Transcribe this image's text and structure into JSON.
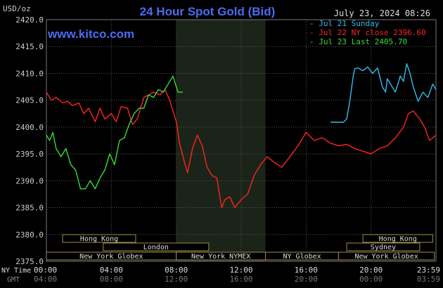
{
  "chart_data": {
    "type": "line",
    "title": "24 Hour Spot Gold (Bid)",
    "ylabel": "USD/oz",
    "timestamp": "July 23, 2024 08:26",
    "watermark": "www.kitco.com",
    "ylim": [
      2375.0,
      2420.0
    ],
    "y_ticks": [
      "2420.0",
      "2415.0",
      "2410.0",
      "2405.0",
      "2400.0",
      "2395.0",
      "2390.0",
      "2385.0",
      "2380.0",
      "2375.0"
    ],
    "xlim": [
      0,
      24
    ],
    "x_ticks_ny": [
      "00:00",
      "04:00",
      "08:00",
      "12:00",
      "16:00",
      "20:00",
      "23:59"
    ],
    "x_ticks_gmt": [
      "04:00",
      "08:00",
      "12:00",
      "16:00",
      "20:00",
      "00:00",
      "03:59"
    ],
    "x_row_labels": {
      "ny": "NY Time",
      "gmt": "GMT"
    },
    "grid": true,
    "legend_position": "top-right",
    "highlight_band": [
      8.0,
      13.5
    ],
    "series": [
      {
        "name": "Jul 21 Sunday",
        "color": "#33bbee",
        "x": [
          17.5,
          18.3,
          18.5,
          18.7,
          18.9,
          19.0,
          19.2,
          19.5,
          19.8,
          20.1,
          20.4,
          20.7,
          20.9,
          21.0,
          21.2,
          21.5,
          21.8,
          22.0,
          22.2,
          22.4,
          22.6,
          22.9,
          23.2,
          23.5,
          23.8,
          24.0
        ],
        "values": [
          2400.9,
          2400.9,
          2401.5,
          2405.0,
          2409.5,
          2410.9,
          2411.0,
          2410.5,
          2411.2,
          2410.0,
          2411.0,
          2407.5,
          2406.5,
          2409.0,
          2408.0,
          2406.5,
          2409.5,
          2408.5,
          2411.8,
          2410.0,
          2407.5,
          2404.8,
          2406.5,
          2405.5,
          2408.0,
          2407.0
        ]
      },
      {
        "name": "Jul 22 NY close 2396.60",
        "color": "#ff2222",
        "x": [
          0.0,
          0.3,
          0.6,
          1.0,
          1.3,
          1.6,
          2.0,
          2.3,
          2.6,
          3.0,
          3.3,
          3.6,
          4.0,
          4.3,
          4.6,
          5.0,
          5.3,
          5.6,
          6.0,
          6.3,
          6.6,
          7.0,
          7.3,
          7.6,
          8.0,
          8.2,
          8.5,
          8.7,
          9.0,
          9.3,
          9.6,
          9.9,
          10.2,
          10.5,
          10.8,
          11.0,
          11.3,
          11.6,
          12.0,
          12.4,
          12.8,
          13.2,
          13.6,
          14.0,
          14.5,
          15.0,
          15.5,
          16.0,
          16.5,
          17.0,
          17.5,
          18.0,
          18.5,
          19.0,
          19.5,
          20.0,
          20.5,
          21.0,
          21.5,
          22.0,
          22.3,
          22.6,
          23.0,
          23.3,
          23.6,
          24.0
        ],
        "values": [
          2406.5,
          2405.0,
          2405.5,
          2404.5,
          2404.8,
          2404.0,
          2404.5,
          2402.5,
          2403.5,
          2401.0,
          2403.5,
          2401.5,
          2402.5,
          2401.0,
          2403.8,
          2403.5,
          2400.5,
          2401.5,
          2405.5,
          2406.0,
          2406.5,
          2406.0,
          2407.0,
          2405.0,
          2401.0,
          2397.0,
          2393.5,
          2391.5,
          2396.0,
          2398.5,
          2396.5,
          2392.5,
          2391.0,
          2390.5,
          2385.0,
          2386.5,
          2387.0,
          2385.0,
          2386.5,
          2387.5,
          2391.0,
          2393.0,
          2394.5,
          2393.5,
          2392.5,
          2394.5,
          2396.5,
          2399.0,
          2397.5,
          2398.0,
          2397.0,
          2396.5,
          2396.8,
          2396.0,
          2395.5,
          2395.0,
          2396.0,
          2396.5,
          2398.0,
          2400.0,
          2402.5,
          2403.0,
          2401.5,
          2400.0,
          2397.5,
          2398.5
        ]
      },
      {
        "name": "Jul 23 Last 2405.70",
        "color": "#33dd33",
        "x": [
          0.0,
          0.2,
          0.4,
          0.6,
          0.9,
          1.2,
          1.5,
          1.8,
          2.1,
          2.4,
          2.7,
          3.0,
          3.3,
          3.6,
          3.9,
          4.2,
          4.5,
          4.8,
          5.1,
          5.4,
          5.7,
          6.0,
          6.3,
          6.6,
          6.9,
          7.2,
          7.5,
          7.8,
          8.1,
          8.4
        ],
        "values": [
          2398.5,
          2397.5,
          2399.0,
          2396.0,
          2394.5,
          2396.0,
          2393.0,
          2392.0,
          2388.5,
          2388.5,
          2390.0,
          2388.5,
          2390.5,
          2392.0,
          2395.0,
          2393.0,
          2397.5,
          2398.0,
          2400.5,
          2402.5,
          2403.5,
          2403.5,
          2406.0,
          2405.5,
          2407.0,
          2406.5,
          2408.0,
          2409.5,
          2406.5,
          2406.5
        ]
      }
    ],
    "sessions_rows": [
      [
        {
          "label": "Hong Kong",
          "start": 1.0,
          "end": 5.5
        },
        {
          "label": "Hong Kong",
          "start": 19.5,
          "end": 23.8
        }
      ],
      [
        {
          "label": "London",
          "start": 3.5,
          "end": 10.0
        },
        {
          "label": "Sydney",
          "start": 18.5,
          "end": 23.0
        }
      ],
      [
        {
          "label": "New York Globex",
          "start": 0.0,
          "end": 8.0
        },
        {
          "label": "New York NYMEX",
          "start": 8.0,
          "end": 13.5
        },
        {
          "label": "NY Globex",
          "start": 13.5,
          "end": 18.0
        },
        {
          "label": "New York Globex",
          "start": 18.0,
          "end": 23.9
        }
      ]
    ]
  }
}
